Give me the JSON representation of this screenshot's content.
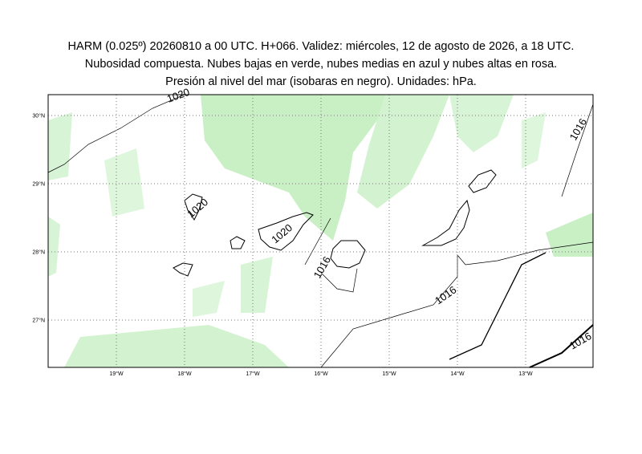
{
  "title": [
    "HARM (0.025º) 20260810 a 00 UTC. H+066. Validez: miércoles, 12 de agosto de 2026, a 18 UTC.",
    "Nubosidad compuesta. Nubes bajas en verde, nubes medias en azul y nubes altas en rosa.",
    "Presión al nivel del mar (isobaras en negro). Unidades: hPa."
  ],
  "lat_labels": [
    "30°N",
    "29°N",
    "28°N",
    "27°N"
  ],
  "lon_labels": [
    "19°W",
    "18°W",
    "17°W",
    "16°W",
    "15°W",
    "14°W",
    "13°W"
  ],
  "isobar_labels": [
    "1020",
    "1020",
    "1020",
    "1016",
    "1016",
    "1016",
    "1016"
  ]
}
